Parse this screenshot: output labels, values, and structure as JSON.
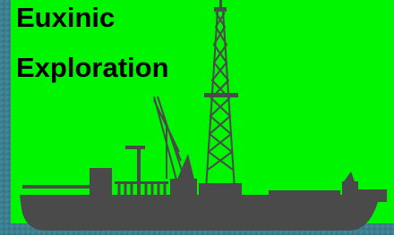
{
  "logo": {
    "title_lines": [
      "Euxinic",
      "Exploration"
    ]
  }
}
